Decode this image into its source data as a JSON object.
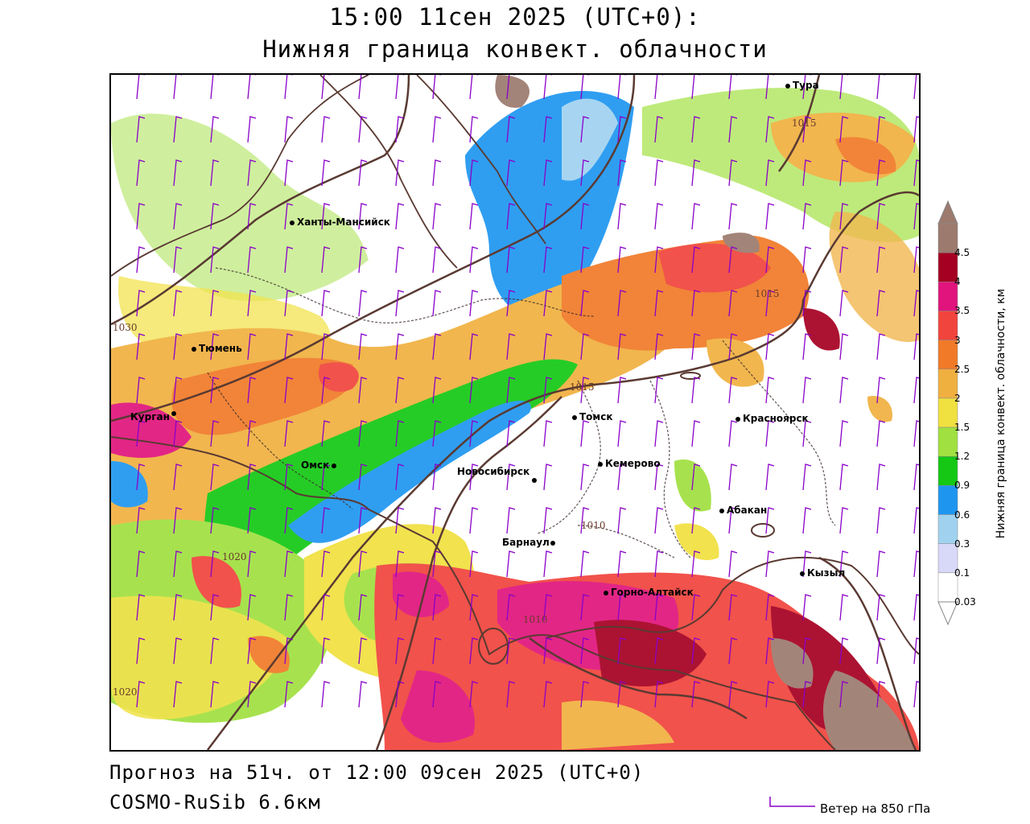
{
  "header": {
    "title_line1": "15:00 11сен 2025 (UTC+0):",
    "title_line2": "Нижняя граница конвект. облачности"
  },
  "footer": {
    "forecast": "Прогноз на 51ч. от 12:00 09сен 2025 (UTC+0)",
    "model": "COSMO-RuSib 6.6км",
    "wind_legend": "Ветер на 850 гПа"
  },
  "legend": {
    "title": "Нижняя граница конвект. облачности, км",
    "levels": [
      {
        "label": "4.5",
        "color": "#9c7a6e"
      },
      {
        "label": "4",
        "color": "#a50021"
      },
      {
        "label": "3.5",
        "color": "#e0147c"
      },
      {
        "label": "3",
        "color": "#f0443c"
      },
      {
        "label": "2.5",
        "color": "#f07a28"
      },
      {
        "label": "2",
        "color": "#f0b040"
      },
      {
        "label": "1.5",
        "color": "#f0e040"
      },
      {
        "label": "1.2",
        "color": "#a0e040"
      },
      {
        "label": "0.9",
        "color": "#14c814"
      },
      {
        "label": "0.6",
        "color": "#1e96f0"
      },
      {
        "label": "0.3",
        "color": "#a0d2f0"
      },
      {
        "label": "0.1",
        "color": "#d8d8f8"
      },
      {
        "label": "0.03",
        "color": "#ffffff"
      }
    ]
  },
  "cities": {
    "tura": "Тура",
    "khanty": "Ханты-Мансийск",
    "tyumen": "Тюмень",
    "kurgan": "Курган",
    "omsk": "Омск",
    "tomsk": "Томск",
    "krasnoyarsk": "Красноярск",
    "kemerovo": "Кемерово",
    "novosibirsk": "Новосибирск",
    "abakan": "Абакан",
    "barnaul": "Барнаул",
    "kyzyl": "Кызыл",
    "gorno": "Горно-Алтайск"
  },
  "isobars": {
    "i1015a": "1015",
    "i1015b": "1015",
    "i1015c": "1015",
    "i1030": "1030",
    "i1020a": "1020",
    "i1020b": "1020",
    "i1010a": "1010",
    "i1010b": "1010"
  },
  "colors": {
    "isobar": "#5a3a32",
    "border": "#3a2a28",
    "wind_barb": "#8a00c8"
  }
}
